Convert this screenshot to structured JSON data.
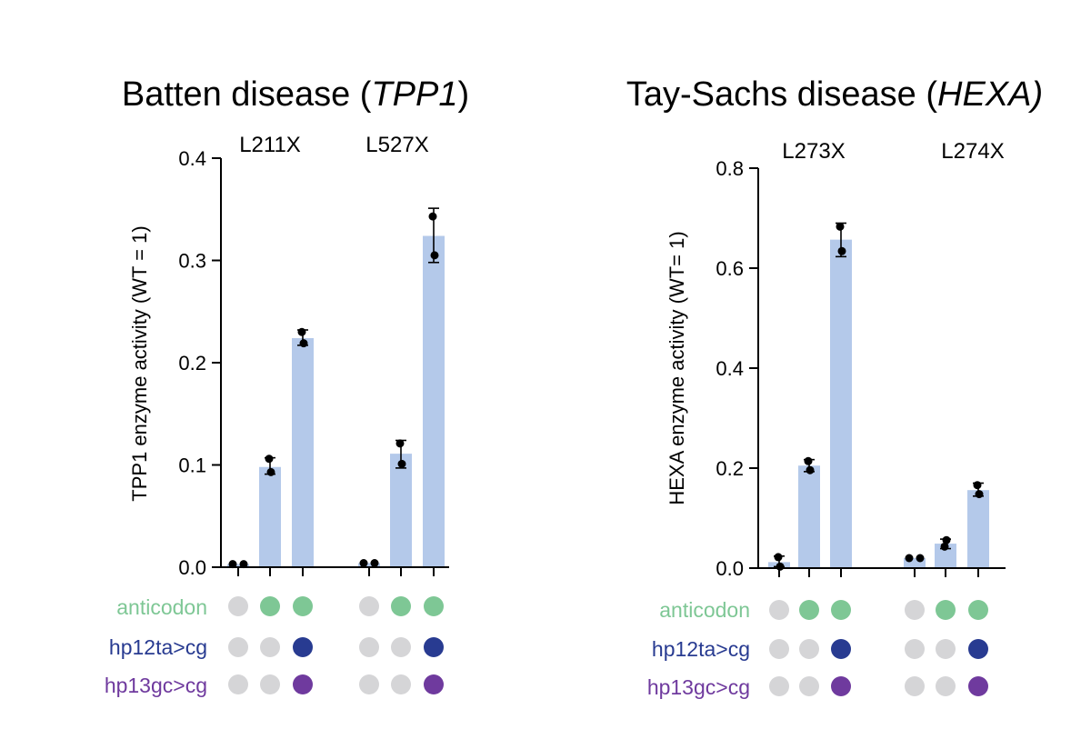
{
  "colors": {
    "bar": "#b4c9ea",
    "off": "#d5d5d7",
    "anticodon": "#7ec795",
    "hp12ta_cg": "#283b91",
    "hp13gc_cg": "#6f3a9e",
    "point": "#000000"
  },
  "chart_data": [
    {
      "type": "bar",
      "title_prefix": "Batten disease (",
      "title_italic": "TPP1",
      "title_suffix": ")",
      "ylabel": "TPP1 enzyme activity (WT = 1)",
      "ylim": [
        0,
        0.4
      ],
      "yticks": [
        0.0,
        0.1,
        0.2,
        0.3,
        0.4
      ],
      "ytick_labels": [
        "0.0",
        "0.1",
        "0.2",
        "0.3",
        "0.4"
      ],
      "groups": [
        {
          "label": "L211X",
          "bars": [
            {
              "mean": 0.003,
              "points": [
                0.003,
                0.003
              ],
              "err": [
                0.003,
                0.003
              ]
            },
            {
              "mean": 0.098,
              "points": [
                0.106,
                0.093
              ],
              "err": [
                0.091,
                0.107
              ]
            },
            {
              "mean": 0.224,
              "points": [
                0.23,
                0.219
              ],
              "err": [
                0.217,
                0.232
              ]
            }
          ]
        },
        {
          "label": "L527X",
          "bars": [
            {
              "mean": 0.004,
              "points": [
                0.004,
                0.004
              ],
              "err": [
                0.004,
                0.004
              ]
            },
            {
              "mean": 0.111,
              "points": [
                0.121,
                0.101
              ],
              "err": [
                0.097,
                0.124
              ]
            },
            {
              "mean": 0.324,
              "points": [
                0.343,
                0.305
              ],
              "err": [
                0.298,
                0.351
              ]
            }
          ]
        }
      ],
      "rows": [
        {
          "label": "anticodon",
          "color_key": "anticodon",
          "on": [
            [
              false,
              true,
              true
            ],
            [
              false,
              true,
              true
            ]
          ]
        },
        {
          "label": "hp12ta>cg",
          "color_key": "hp12ta_cg",
          "on": [
            [
              false,
              false,
              true
            ],
            [
              false,
              false,
              true
            ]
          ]
        },
        {
          "label": "hp13gc>cg",
          "color_key": "hp13gc_cg",
          "on": [
            [
              false,
              false,
              true
            ],
            [
              false,
              false,
              true
            ]
          ]
        }
      ]
    },
    {
      "type": "bar",
      "title_prefix": "Tay-Sachs disease (",
      "title_italic": "HEXA)",
      "title_suffix": "",
      "ylabel": "HEXA enzyme activity (WT= 1)",
      "ylim": [
        0,
        0.8
      ],
      "yticks": [
        0.0,
        0.2,
        0.4,
        0.6,
        0.8
      ],
      "ytick_labels": [
        "0.0",
        "0.2",
        "0.4",
        "0.6",
        "0.8"
      ],
      "groups": [
        {
          "label": "L273X",
          "bars": [
            {
              "mean": 0.012,
              "points": [
                0.022,
                0.003
              ],
              "err": [
                0.003,
                0.024
              ]
            },
            {
              "mean": 0.205,
              "points": [
                0.214,
                0.196
              ],
              "err": [
                0.193,
                0.217
              ]
            },
            {
              "mean": 0.657,
              "points": [
                0.683,
                0.634
              ],
              "err": [
                0.623,
                0.69
              ]
            }
          ]
        },
        {
          "label": "L274X",
          "bars": [
            {
              "mean": 0.02,
              "points": [
                0.02,
                0.02
              ],
              "err": [
                0.02,
                0.02
              ]
            },
            {
              "mean": 0.049,
              "points": [
                0.043,
                0.056
              ],
              "err": [
                0.039,
                0.058
              ]
            },
            {
              "mean": 0.156,
              "points": [
                0.166,
                0.148
              ],
              "err": [
                0.144,
                0.17
              ]
            }
          ]
        }
      ],
      "rows": [
        {
          "label": "anticodon",
          "color_key": "anticodon",
          "on": [
            [
              false,
              true,
              true
            ],
            [
              false,
              true,
              true
            ]
          ]
        },
        {
          "label": "hp12ta>cg",
          "color_key": "hp12ta_cg",
          "on": [
            [
              false,
              false,
              true
            ],
            [
              false,
              false,
              true
            ]
          ]
        },
        {
          "label": "hp13gc>cg",
          "color_key": "hp13gc_cg",
          "on": [
            [
              false,
              false,
              true
            ],
            [
              false,
              false,
              true
            ]
          ]
        }
      ]
    }
  ]
}
